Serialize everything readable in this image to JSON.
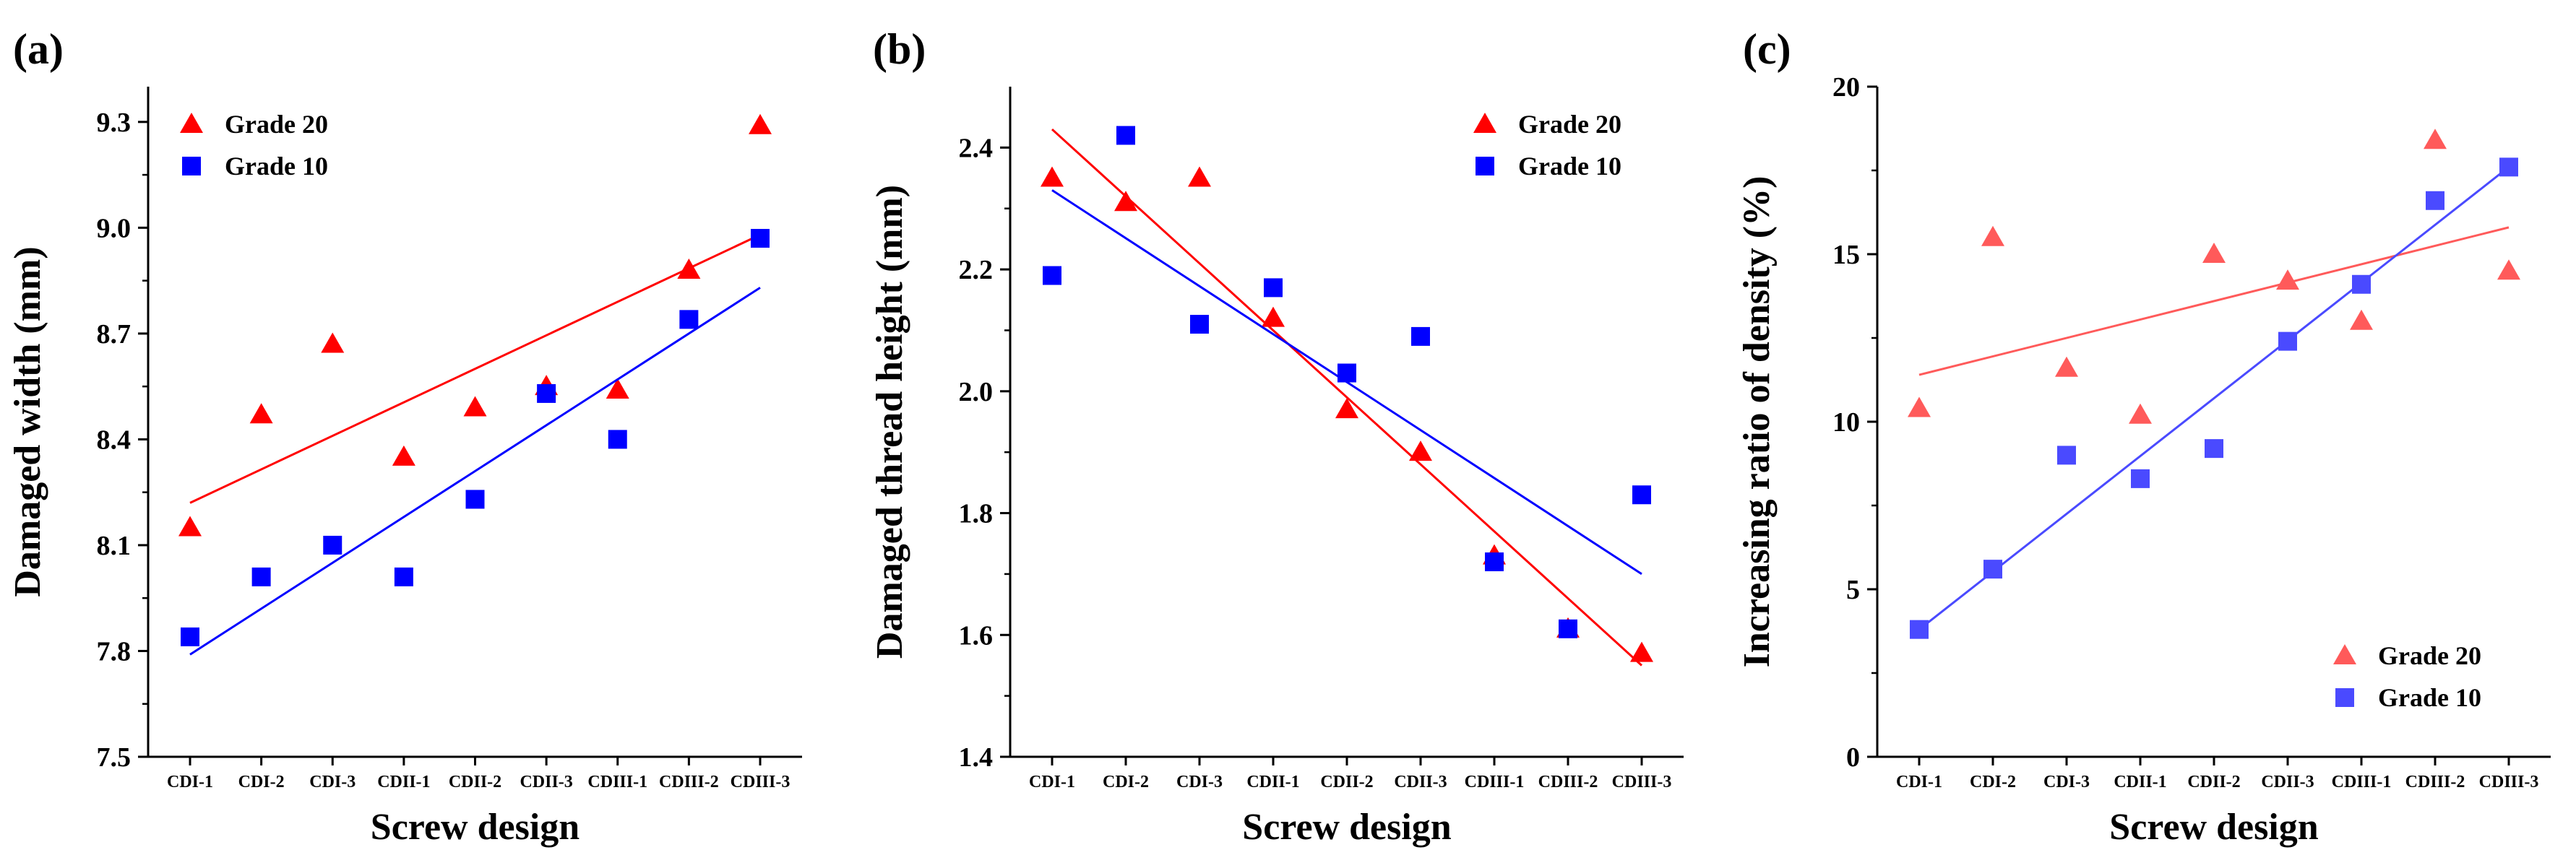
{
  "chart_data": [
    {
      "type": "scatter",
      "panel_label": "(a)",
      "xlabel": "Screw design",
      "ylabel": "Damaged width (mm)",
      "categories": [
        "CDI-1",
        "CDI-2",
        "CDI-3",
        "CDII-1",
        "CDII-2",
        "CDII-3",
        "CDIII-1",
        "CDIII-2",
        "CDIII-3"
      ],
      "ylim": [
        7.5,
        9.4
      ],
      "yticks": [
        "7.5",
        "7.8",
        "8.1",
        "8.4",
        "8.7",
        "9.0",
        "9.3"
      ],
      "legend_position": "top-left",
      "series": [
        {
          "name": "Grade 20",
          "marker": "triangle",
          "color": "#ff0000",
          "values": [
            8.15,
            8.47,
            8.67,
            8.35,
            8.49,
            8.55,
            8.54,
            8.88,
            9.29
          ],
          "fit": [
            8.22,
            8.98
          ]
        },
        {
          "name": "Grade 10",
          "marker": "square",
          "color": "#0000ff",
          "values": [
            7.84,
            8.01,
            8.1,
            8.01,
            8.23,
            8.53,
            8.4,
            8.74,
            8.97
          ],
          "fit": [
            7.79,
            8.83
          ]
        }
      ]
    },
    {
      "type": "scatter",
      "panel_label": "(b)",
      "xlabel": "Screw design",
      "ylabel": "Damaged thread height (mm)",
      "categories": [
        "CDI-1",
        "CDI-2",
        "CDI-3",
        "CDII-1",
        "CDII-2",
        "CDII-3",
        "CDIII-1",
        "CDIII-2",
        "CDIII-3"
      ],
      "ylim": [
        1.4,
        2.5
      ],
      "yticks": [
        "1.4",
        "1.6",
        "1.8",
        "2.0",
        "2.2",
        "2.4"
      ],
      "legend_position": "top-right",
      "series": [
        {
          "name": "Grade 20",
          "marker": "triangle",
          "color": "#ff0000",
          "values": [
            2.35,
            2.31,
            2.35,
            2.12,
            1.97,
            1.9,
            1.73,
            1.61,
            1.57
          ],
          "fit": [
            2.43,
            1.55
          ]
        },
        {
          "name": "Grade 10",
          "marker": "square",
          "color": "#0000ff",
          "values": [
            2.19,
            2.42,
            2.11,
            2.17,
            2.03,
            2.09,
            1.72,
            1.61,
            1.83
          ],
          "fit": [
            2.33,
            1.7
          ]
        }
      ]
    },
    {
      "type": "scatter",
      "panel_label": "(c)",
      "xlabel": "Screw design",
      "ylabel": "Increasing ratio of density (%)",
      "categories": [
        "CDI-1",
        "CDI-2",
        "CDI-3",
        "CDII-1",
        "CDII-2",
        "CDII-3",
        "CDIII-1",
        "CDIII-2",
        "CDIII-3"
      ],
      "ylim": [
        0,
        20
      ],
      "yticks": [
        "0",
        "5",
        "10",
        "15",
        "20"
      ],
      "legend_position": "bottom-right",
      "series": [
        {
          "name": "Grade 20",
          "marker": "triangle",
          "color": "#ff5a5a",
          "values": [
            10.4,
            15.5,
            11.6,
            10.2,
            15.0,
            14.2,
            13.0,
            18.4,
            14.5
          ],
          "fit": [
            11.4,
            15.8
          ]
        },
        {
          "name": "Grade 10",
          "marker": "square",
          "color": "#4a4aff",
          "values": [
            3.8,
            5.6,
            9.0,
            8.3,
            9.2,
            12.4,
            14.1,
            16.6,
            17.6
          ],
          "fit": [
            3.8,
            17.6
          ]
        }
      ]
    }
  ]
}
